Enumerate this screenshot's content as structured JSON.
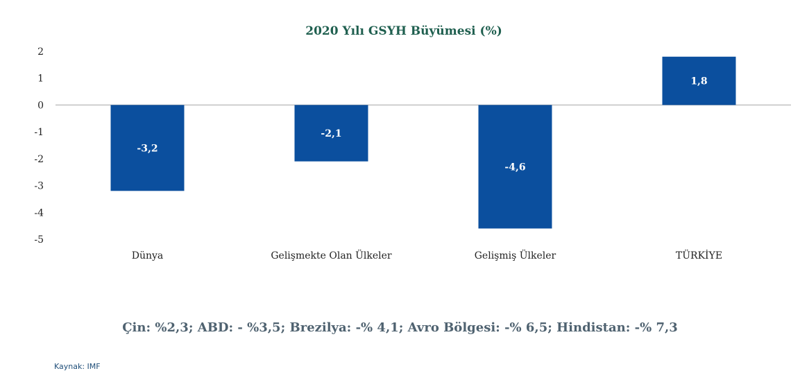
{
  "chart_data": {
    "type": "bar",
    "title": "2020 Yılı GSYH Büyümesi (%)",
    "categories": [
      "Dünya",
      "Gelişmekte Olan Ülkeler",
      "Gelişmiş Ülkeler",
      "TÜRKİYE"
    ],
    "values": [
      -3.2,
      -2.1,
      -4.6,
      1.8
    ],
    "data_labels": [
      "-3,2",
      "-2,1",
      "-4,6",
      "1,8"
    ],
    "ylim": [
      -5,
      2
    ],
    "yticks": [
      2,
      1,
      0,
      -1,
      -2,
      -3,
      -4,
      -5
    ],
    "xlabel": "",
    "ylabel": "",
    "grid": false,
    "bar_color": "#0b4f9e"
  },
  "footnote": "Çin: %2,3; ABD: - %3,5; Brezilya: -% 4,1; Avro Bölgesi: -% 6,5; Hindistan: -% 7,3",
  "source": "Kaynak: IMF"
}
